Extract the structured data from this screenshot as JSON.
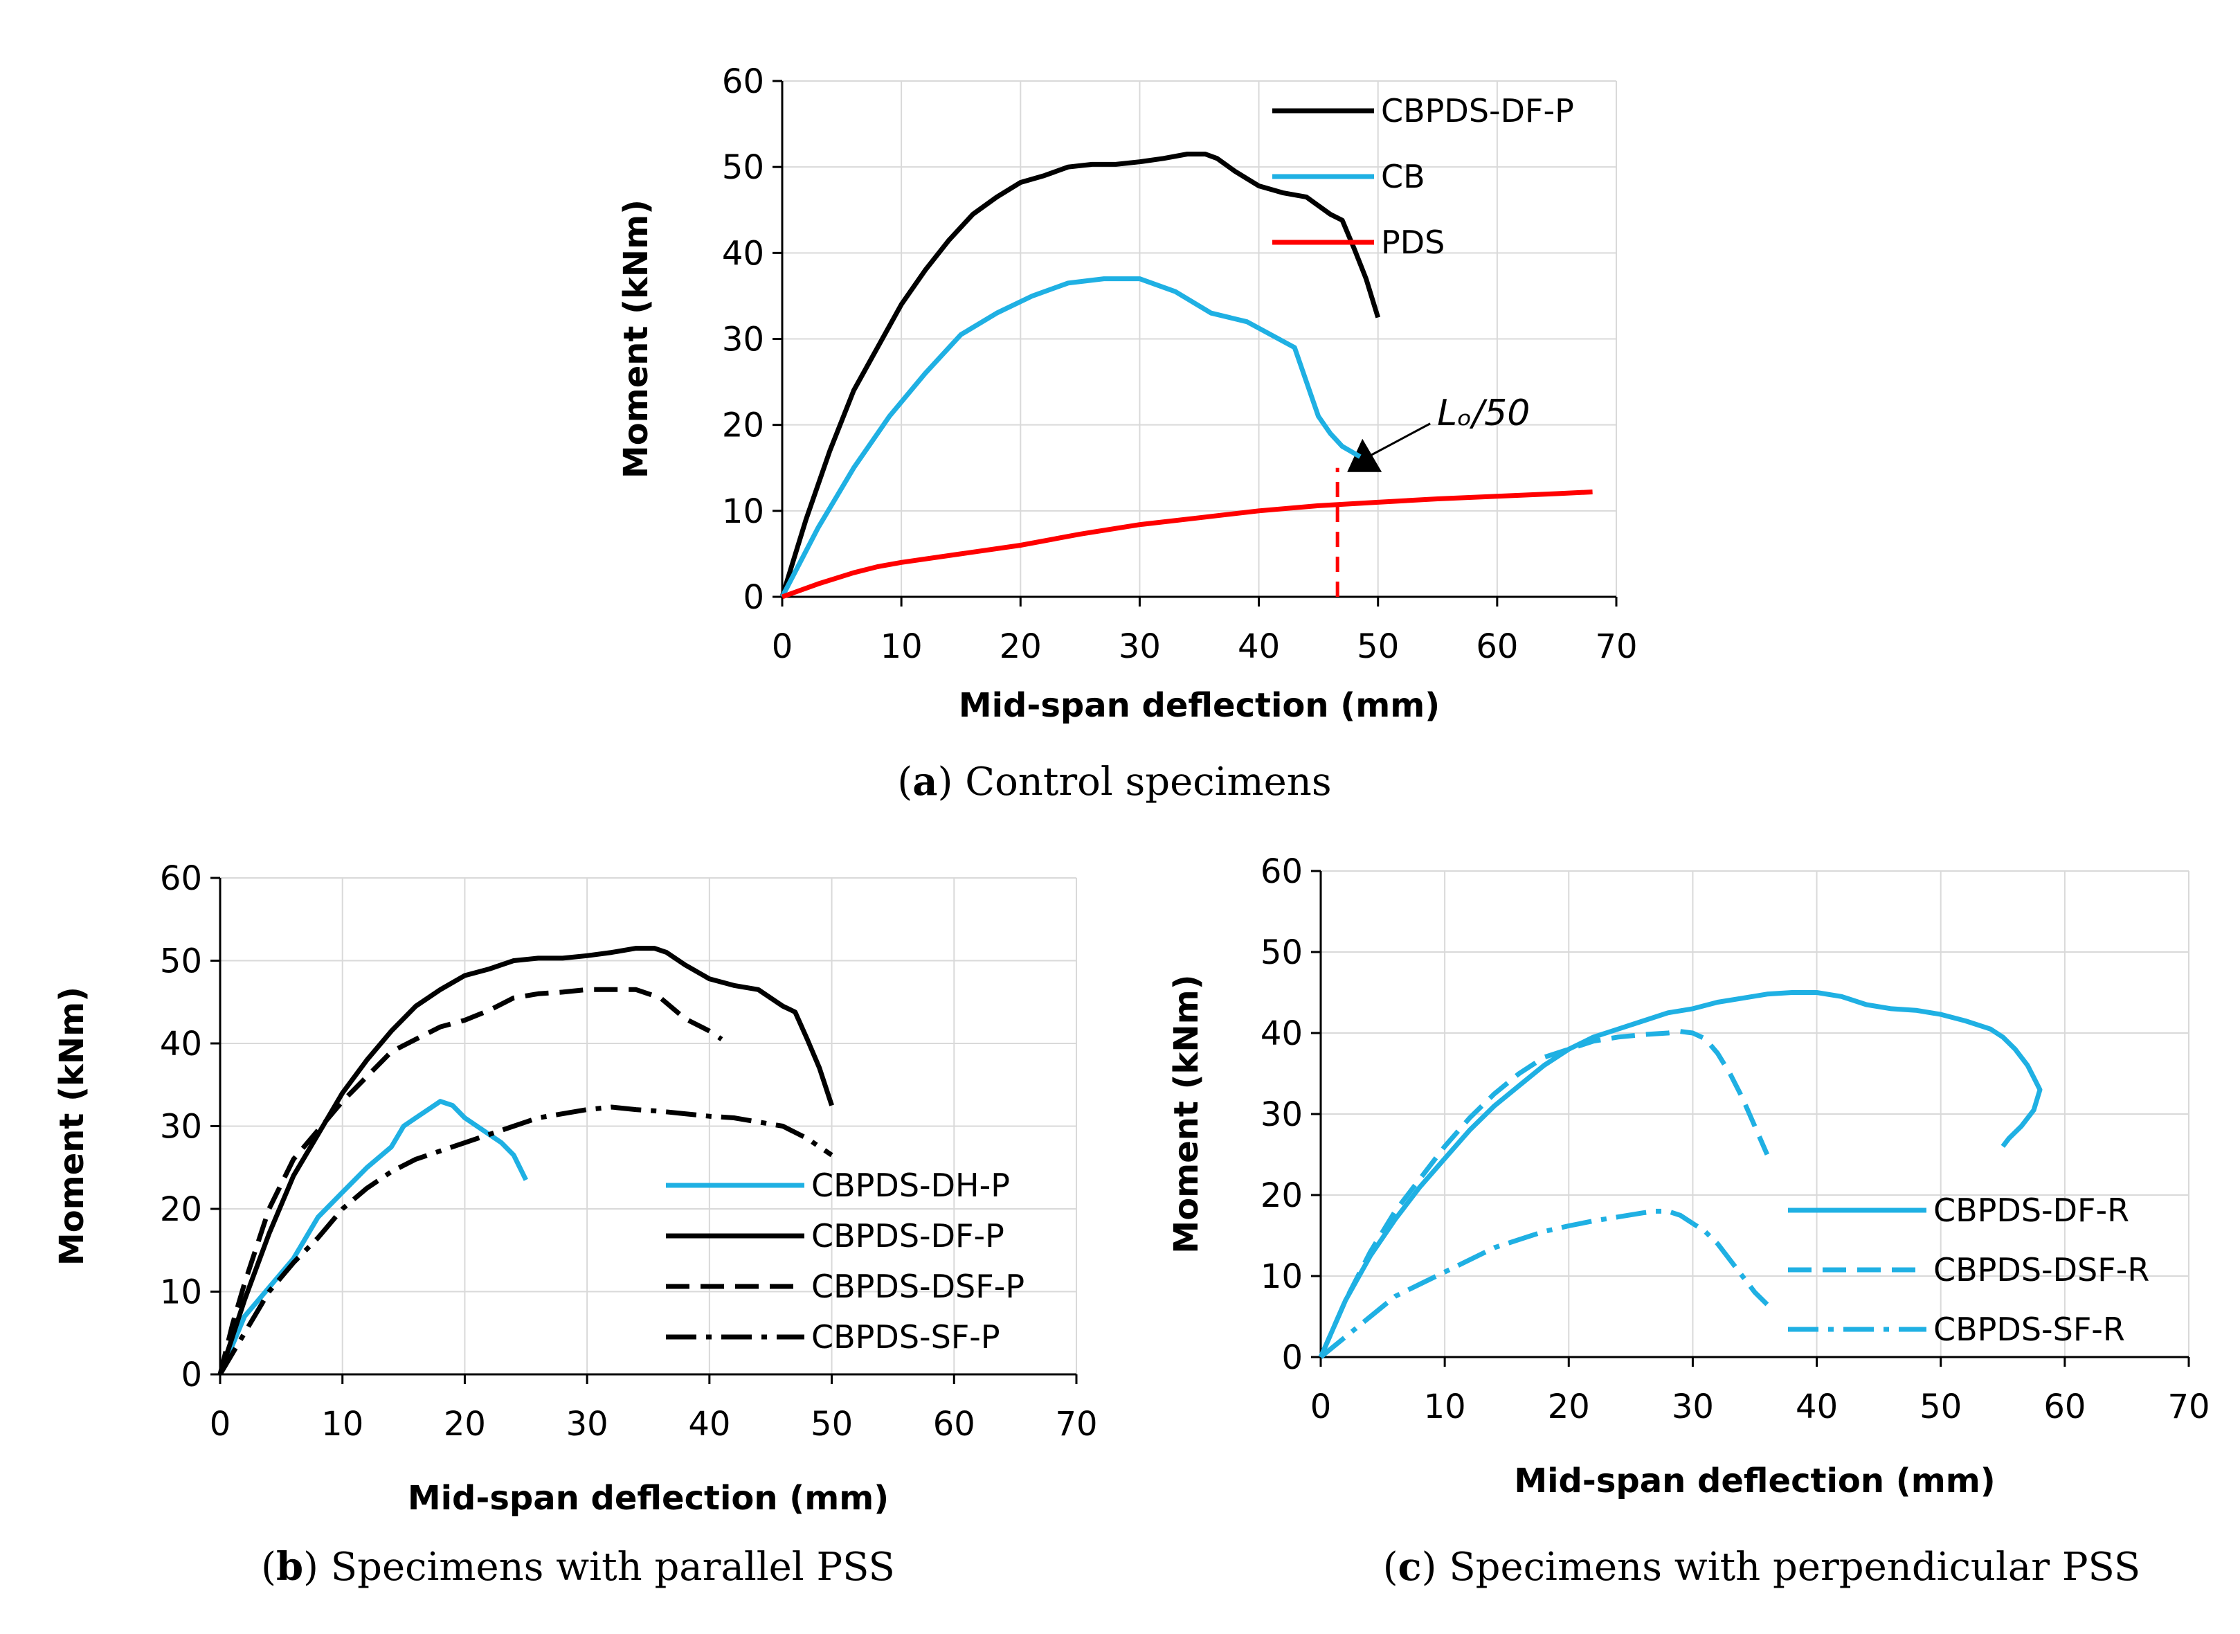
{
  "chart_data": [
    {
      "id": "a",
      "type": "line",
      "caption_letter": "a",
      "caption_text": "Control specimens",
      "xlabel": "Mid-span deflection (mm)",
      "ylabel": "Moment (kNm)",
      "xlim": [
        0,
        70
      ],
      "ylim": [
        0,
        60
      ],
      "xticks": [
        0,
        10,
        20,
        30,
        40,
        50,
        60,
        70
      ],
      "yticks": [
        0,
        10,
        20,
        30,
        40,
        50,
        60
      ],
      "grid": true,
      "legend": "top-right",
      "series": [
        {
          "name": "CBPDS-DF-P",
          "color": "#000000",
          "dash": "solid",
          "x": [
            0,
            2,
            4,
            6,
            8,
            10,
            12,
            14,
            16,
            18,
            20,
            22,
            24,
            26,
            28,
            30,
            32,
            34,
            35.5,
            36.5,
            38,
            40,
            42,
            44,
            46,
            47,
            48,
            49,
            50
          ],
          "y": [
            0,
            9,
            17,
            24,
            29,
            34,
            38,
            41.5,
            44.5,
            46.5,
            48.2,
            49,
            50,
            50.3,
            50.3,
            50.6,
            51,
            51.5,
            51.5,
            51,
            49.5,
            47.8,
            47,
            46.5,
            44.5,
            43.8,
            40.5,
            37,
            32.5
          ]
        },
        {
          "name": "CB",
          "color": "#1FB0E3",
          "dash": "solid",
          "x": [
            0,
            3,
            6,
            9,
            12,
            15,
            18,
            21,
            24,
            27,
            30,
            33,
            36,
            39,
            41,
            43,
            44,
            45,
            46,
            47,
            48.5
          ],
          "y": [
            0,
            8,
            15,
            21,
            26,
            30.5,
            33,
            35,
            36.5,
            37,
            37,
            35.5,
            33,
            32,
            30.5,
            29,
            25,
            21,
            19,
            17.5,
            16.3
          ]
        },
        {
          "name": "PDS",
          "color": "#FF0000",
          "dash": "solid",
          "x": [
            0,
            3,
            6,
            8,
            10,
            15,
            20,
            25,
            30,
            35,
            40,
            45,
            50,
            55,
            60,
            65,
            68
          ],
          "y": [
            0,
            1.5,
            2.8,
            3.5,
            4,
            5,
            6,
            7.3,
            8.4,
            9.2,
            10,
            10.6,
            11,
            11.4,
            11.7,
            12,
            12.2
          ]
        }
      ],
      "annotation": {
        "text": "Lₒ/50",
        "x": 46.6,
        "y_from": 0,
        "y_to": 15,
        "color": "#FF0000"
      }
    },
    {
      "id": "b",
      "type": "line",
      "caption_letter": "b",
      "caption_text": "Specimens with parallel PSS",
      "xlabel": "Mid-span deflection (mm)",
      "ylabel": "Moment (kNm)",
      "xlim": [
        0,
        70
      ],
      "ylim": [
        0,
        60
      ],
      "xticks": [
        0,
        10,
        20,
        30,
        40,
        50,
        60,
        70
      ],
      "yticks": [
        0,
        10,
        20,
        30,
        40,
        50,
        60
      ],
      "grid": true,
      "legend": "bottom-right",
      "series": [
        {
          "name": "CBPDS-DH-P",
          "color": "#1FB0E3",
          "dash": "solid",
          "x": [
            0,
            2,
            4,
            6,
            8,
            10,
            12,
            14,
            15,
            16,
            17,
            18,
            19,
            20,
            21,
            22,
            23,
            24,
            25
          ],
          "y": [
            0,
            7,
            10.5,
            14,
            19,
            22,
            25,
            27.5,
            30,
            31,
            32,
            33,
            32.5,
            31,
            30,
            29,
            28,
            26.5,
            23.5
          ]
        },
        {
          "name": "CBPDS-DF-P",
          "color": "#000000",
          "dash": "solid",
          "x": [
            0,
            2,
            4,
            6,
            8,
            10,
            12,
            14,
            16,
            18,
            20,
            22,
            24,
            26,
            28,
            30,
            32,
            34,
            35.5,
            36.5,
            38,
            40,
            42,
            44,
            46,
            47,
            48,
            49,
            50
          ],
          "y": [
            0,
            9,
            17,
            24,
            29,
            34,
            38,
            41.5,
            44.5,
            46.5,
            48.2,
            49,
            50,
            50.3,
            50.3,
            50.6,
            51,
            51.5,
            51.5,
            51,
            49.5,
            47.8,
            47,
            46.5,
            44.5,
            43.8,
            40.5,
            37,
            32.5
          ]
        },
        {
          "name": "CBPDS-DSF-P",
          "color": "#000000",
          "dash": "dashed",
          "x": [
            0,
            1,
            2,
            4,
            6,
            8,
            10,
            12,
            14,
            16,
            18,
            20,
            22,
            24,
            26,
            28,
            30,
            32,
            34,
            36,
            38,
            40,
            41
          ],
          "y": [
            0,
            6,
            11,
            20,
            26,
            29.5,
            33,
            36,
            39,
            40.5,
            42,
            42.8,
            44,
            45.5,
            46,
            46.2,
            46.5,
            46.5,
            46.5,
            45.5,
            43,
            41.5,
            40.5
          ]
        },
        {
          "name": "CBPDS-SF-P",
          "color": "#000000",
          "dash": "dashdot",
          "x": [
            0,
            2,
            4,
            6,
            8,
            10,
            12,
            14,
            16,
            18,
            20,
            22,
            24,
            26,
            28,
            30,
            32,
            34,
            36,
            38,
            40,
            42,
            44,
            46,
            48,
            50
          ],
          "y": [
            0,
            5,
            10,
            13.5,
            16.5,
            20,
            22.5,
            24.5,
            26,
            27,
            28,
            29,
            30,
            31,
            31.5,
            32,
            32.3,
            32,
            31.8,
            31.5,
            31.2,
            31,
            30.5,
            30,
            28.5,
            26.5
          ]
        }
      ]
    },
    {
      "id": "c",
      "type": "line",
      "caption_letter": "c",
      "caption_text": "Specimens with perpendicular PSS",
      "xlabel": "Mid-span deflection (mm)",
      "ylabel": "Moment (kNm)",
      "xlim": [
        0,
        70
      ],
      "ylim": [
        0,
        60
      ],
      "xticks": [
        0,
        10,
        20,
        30,
        40,
        50,
        60,
        70
      ],
      "yticks": [
        0,
        10,
        20,
        30,
        40,
        50,
        60
      ],
      "grid": true,
      "legend": "bottom-right",
      "series": [
        {
          "name": "CBPDS-DF-R",
          "color": "#1FB0E3",
          "dash": "solid",
          "x": [
            0,
            2,
            4,
            6,
            8,
            10,
            12,
            14,
            16,
            18,
            20,
            22,
            24,
            26,
            28,
            30,
            32,
            34,
            36,
            38,
            40,
            42,
            44,
            46,
            48,
            50,
            52,
            54,
            55,
            56,
            57,
            57.5,
            58,
            57.5,
            56.5,
            55.5,
            55
          ],
          "y": [
            0,
            7,
            12.5,
            17,
            21,
            24.5,
            28,
            31,
            33.5,
            36,
            38,
            39.5,
            40.5,
            41.5,
            42.5,
            43,
            43.8,
            44.3,
            44.8,
            45,
            45,
            44.5,
            43.5,
            43,
            42.8,
            42.3,
            41.5,
            40.5,
            39.5,
            38,
            36,
            34.5,
            33,
            30.5,
            28.5,
            27,
            26
          ]
        },
        {
          "name": "CBPDS-DSF-R",
          "color": "#1FB0E3",
          "dash": "dashed",
          "x": [
            0,
            2,
            4,
            6,
            8,
            10,
            12,
            14,
            16,
            18,
            20,
            22,
            24,
            26,
            28,
            29,
            30,
            31,
            32,
            33,
            34,
            35,
            36
          ],
          "y": [
            0,
            7,
            13,
            18,
            22,
            26,
            29.5,
            32.5,
            35,
            37,
            38,
            39,
            39.5,
            39.8,
            40,
            40.2,
            40,
            39.3,
            37.5,
            35,
            32,
            28.5,
            25
          ]
        },
        {
          "name": "CBPDS-SF-R",
          "color": "#1FB0E3",
          "dash": "dashdot",
          "x": [
            0,
            2,
            4,
            6,
            8,
            10,
            12,
            14,
            16,
            18,
            20,
            22,
            24,
            26,
            27,
            28,
            29,
            30,
            31,
            32,
            33,
            34,
            35,
            36
          ],
          "y": [
            0,
            2.5,
            5,
            7.5,
            9,
            10.5,
            12,
            13.5,
            14.5,
            15.5,
            16.2,
            16.8,
            17.3,
            17.8,
            18,
            18,
            17.5,
            16.5,
            15.5,
            14,
            12,
            10,
            8,
            6.5
          ]
        }
      ]
    }
  ]
}
